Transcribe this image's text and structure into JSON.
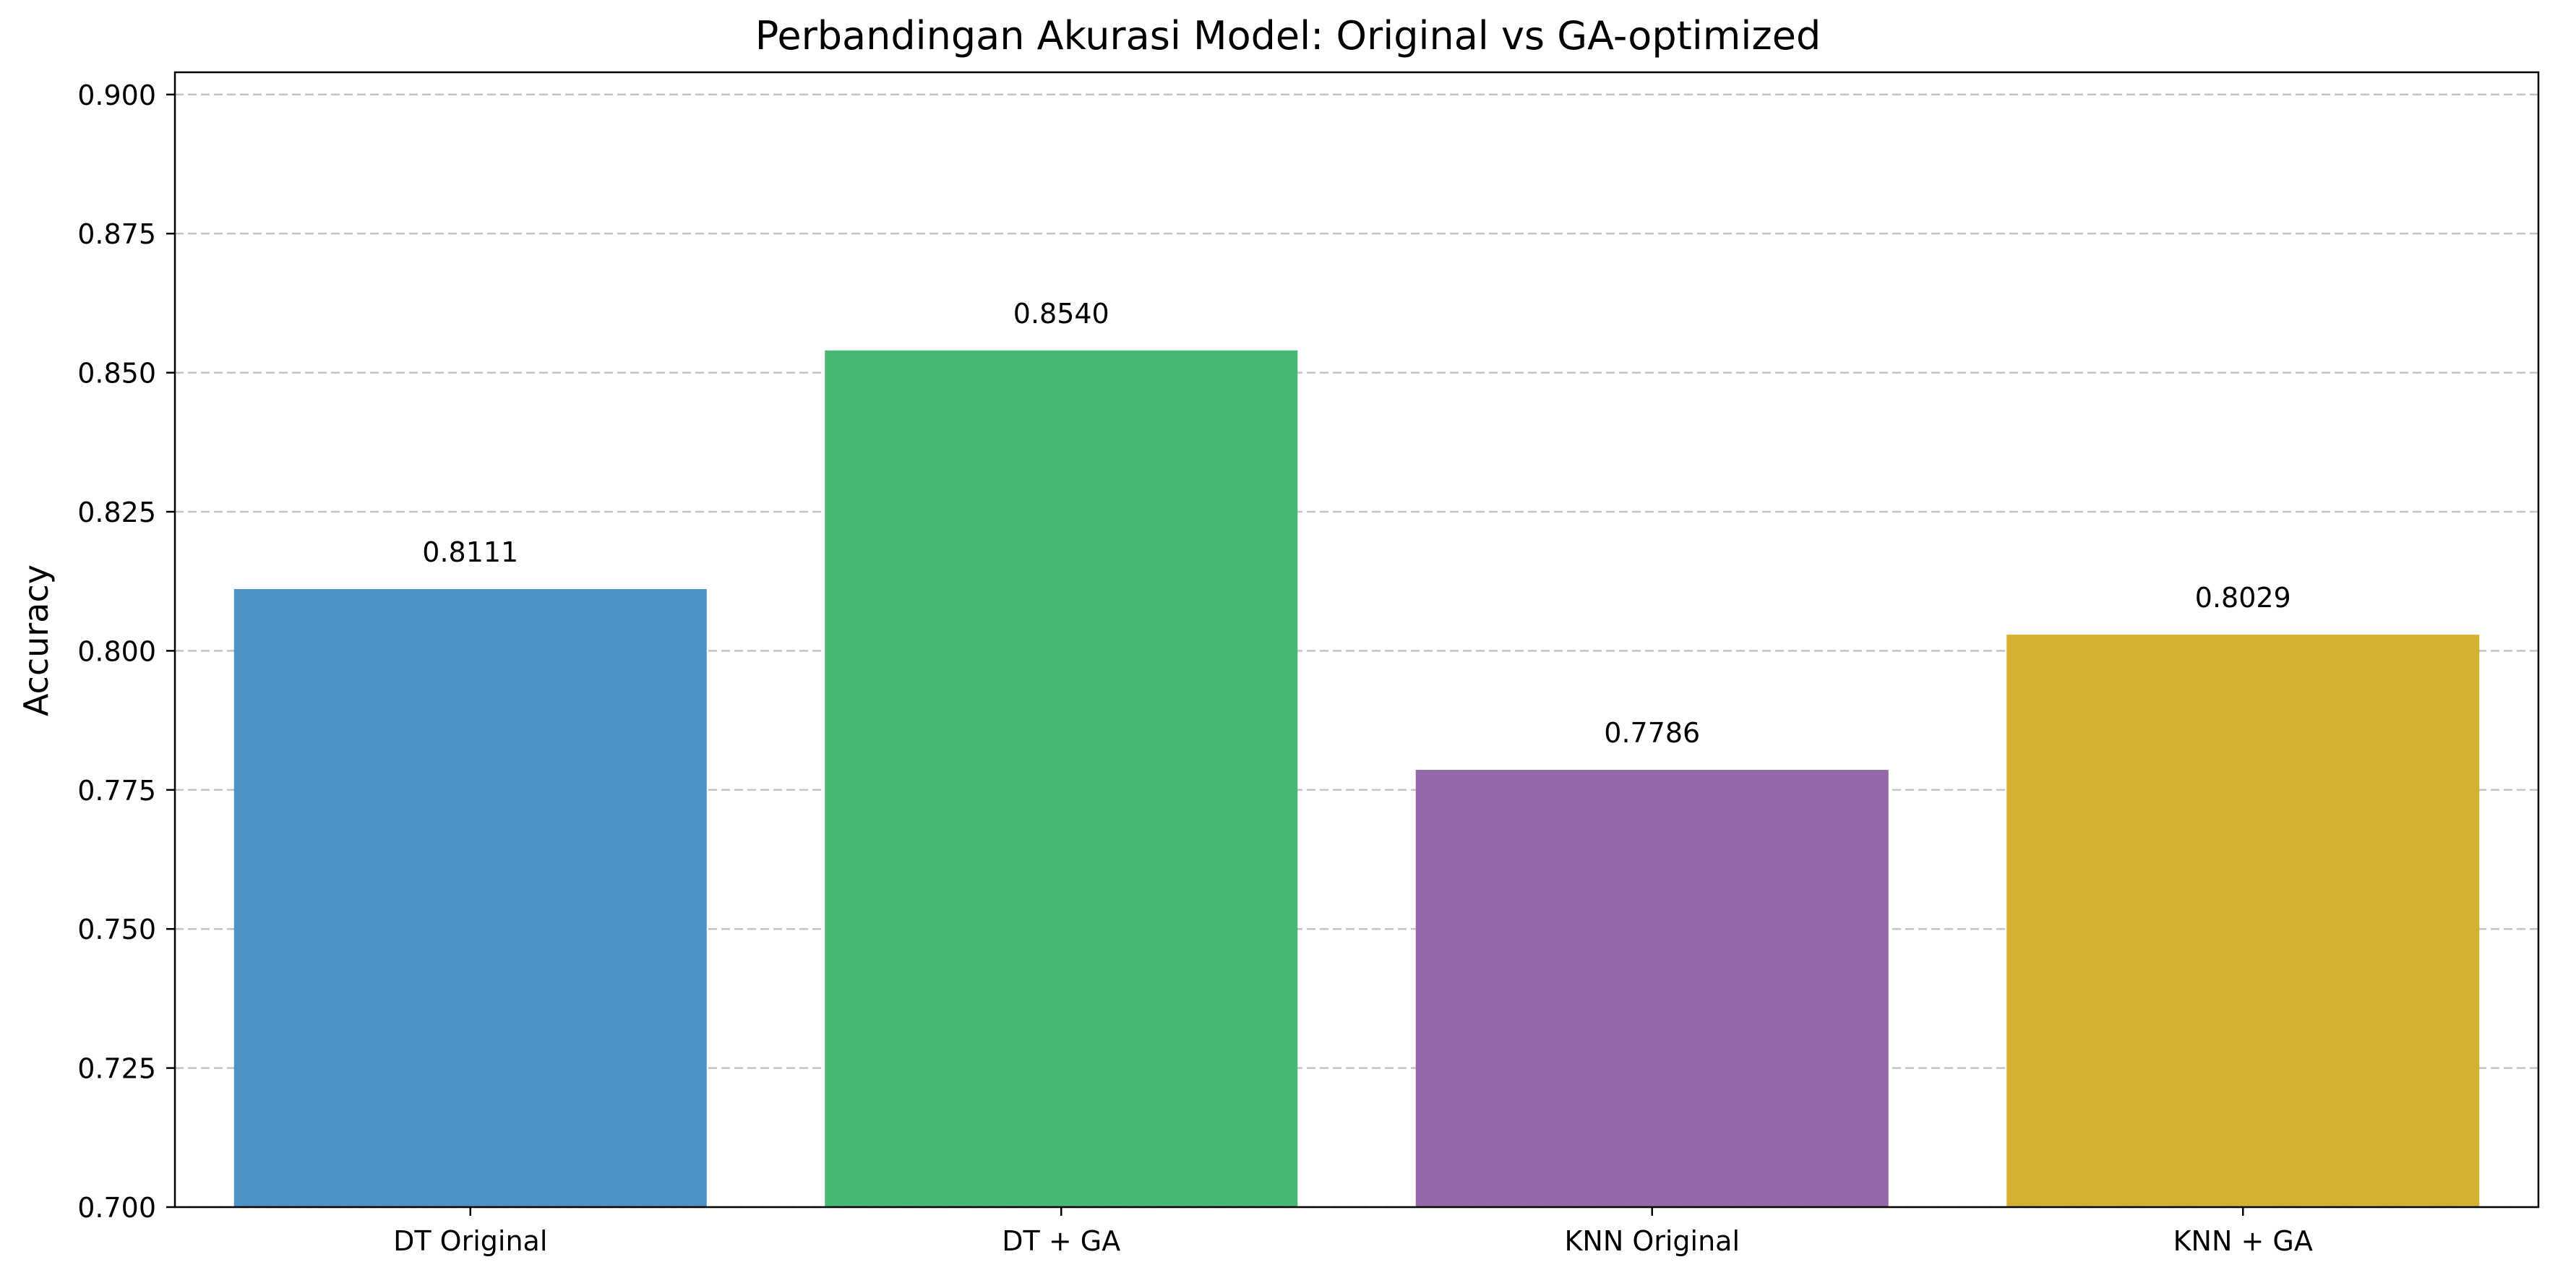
{
  "chart_data": {
    "type": "bar",
    "title": "Perbandingan Akurasi Model: Original vs GA-optimized",
    "xlabel": "",
    "ylabel": "Accuracy",
    "categories": [
      "DT Original",
      "DT + GA",
      "KNN Original",
      "KNN + GA"
    ],
    "values": [
      0.8111,
      0.854,
      0.7786,
      0.8029
    ],
    "value_labels": [
      "0.8111",
      "0.8540",
      "0.7786",
      "0.8029"
    ],
    "colors": [
      "#4a93c6",
      "#45b874",
      "#9566aa",
      "#d4b22f"
    ],
    "ylim": [
      0.7,
      0.904
    ],
    "yticks": [
      0.7,
      0.725,
      0.75,
      0.775,
      0.8,
      0.825,
      0.85,
      0.875,
      0.9
    ],
    "ytick_labels": [
      "0.700",
      "0.725",
      "0.750",
      "0.775",
      "0.800",
      "0.825",
      "0.850",
      "0.875",
      "0.900"
    ],
    "grid": "y, dashed",
    "legend": "none"
  }
}
